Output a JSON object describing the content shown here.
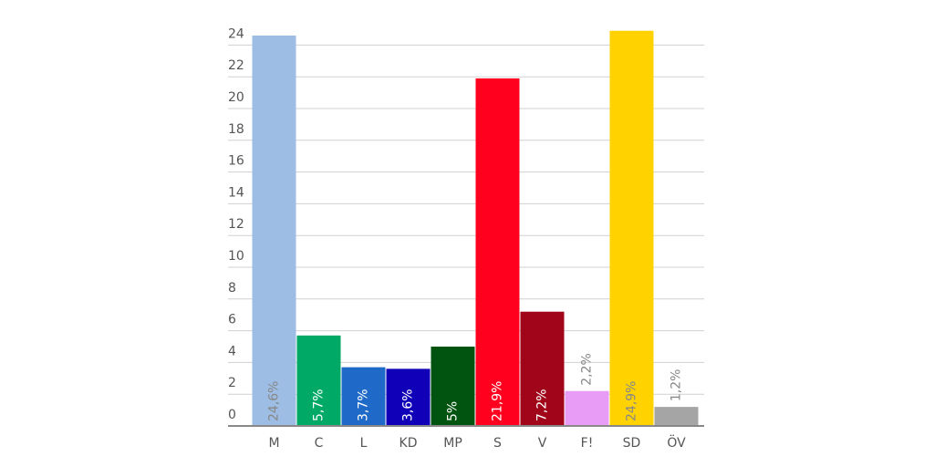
{
  "chart_data": {
    "type": "bar",
    "categories": [
      "M",
      "C",
      "L",
      "KD",
      "MP",
      "S",
      "V",
      "F!",
      "SD",
      "ÖV"
    ],
    "values": [
      24.6,
      5.7,
      3.7,
      3.6,
      5,
      21.9,
      7.2,
      2.2,
      24.9,
      1.2
    ],
    "value_labels": [
      "24,6%",
      "5,7%",
      "3,7%",
      "3,6%",
      "5%",
      "21,9%",
      "7,2%",
      "2,2%",
      "24,9%",
      "1,2%"
    ],
    "colors": [
      "#9dbde4",
      "#00aa66",
      "#1f6ac8",
      "#1000b8",
      "#015410",
      "#ff001f",
      "#a0051a",
      "#e99cf6",
      "#ffd200",
      "#a5a5a5"
    ],
    "ylim": [
      0,
      25
    ],
    "yticks": [
      0,
      2,
      4,
      6,
      8,
      10,
      12,
      14,
      16,
      18,
      20,
      22,
      24
    ],
    "grid": true
  }
}
